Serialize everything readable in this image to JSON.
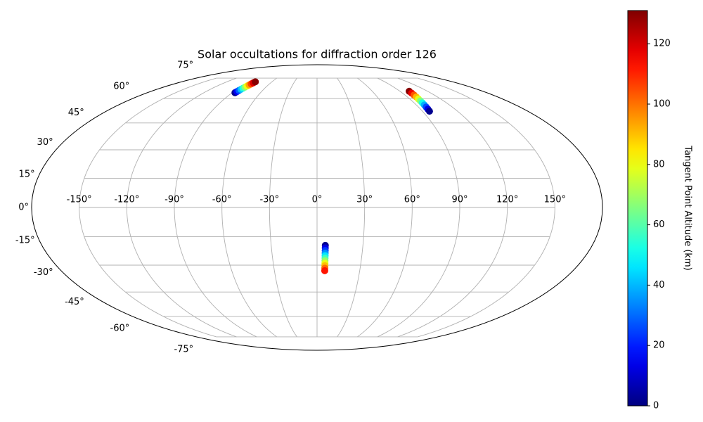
{
  "chart_data": {
    "type": "scatter",
    "projection": "mollweide",
    "title": "Solar occultations for diffraction order 126",
    "xlim": [
      -180,
      180
    ],
    "ylim": [
      -90,
      90
    ],
    "xticks": [
      {
        "value": -150,
        "label": "-150°"
      },
      {
        "value": -120,
        "label": "-120°"
      },
      {
        "value": -90,
        "label": "-90°"
      },
      {
        "value": -60,
        "label": "-60°"
      },
      {
        "value": -30,
        "label": "-30°"
      },
      {
        "value": 0,
        "label": "0°"
      },
      {
        "value": 30,
        "label": "30°"
      },
      {
        "value": 60,
        "label": "60°"
      },
      {
        "value": 90,
        "label": "90°"
      },
      {
        "value": 120,
        "label": "120°"
      },
      {
        "value": 150,
        "label": "150°"
      }
    ],
    "yticks": [
      {
        "value": -75,
        "label": "-75°"
      },
      {
        "value": -60,
        "label": "-60°"
      },
      {
        "value": -45,
        "label": "-45°"
      },
      {
        "value": -30,
        "label": "-30°"
      },
      {
        "value": -15,
        "label": "-15°"
      },
      {
        "value": 0,
        "label": "0°"
      },
      {
        "value": 15,
        "label": "15°"
      },
      {
        "value": 30,
        "label": "30°"
      },
      {
        "value": 45,
        "label": "45°"
      },
      {
        "value": 60,
        "label": "60°"
      },
      {
        "value": 75,
        "label": "75°"
      }
    ],
    "grid": true,
    "colormap": "jet",
    "colorbar": {
      "label": "Tangent Point Altitude (km)",
      "clim": [
        0,
        131
      ],
      "ticks": [
        0,
        20,
        40,
        60,
        80,
        100,
        120
      ]
    },
    "series": [
      {
        "x": [
          -87,
          -86.5,
          -86,
          -85.5,
          -85,
          -84.5,
          -84,
          -83.5,
          -83,
          -82.5,
          -82
        ],
        "y": [
          64,
          64.8,
          65.6,
          66.4,
          67.2,
          68,
          68.8,
          69.6,
          70.4,
          71.2,
          72
        ],
        "c": [
          2,
          15,
          28,
          41,
          54,
          67,
          80,
          93,
          106,
          119,
          130
        ]
      },
      {
        "x": [
          100,
          99.6,
          99.2,
          98.8,
          98.4,
          98,
          97.6,
          97.2,
          96.8,
          96.4,
          96
        ],
        "y": [
          65,
          63.7,
          62.4,
          61.1,
          59.8,
          58.5,
          57.2,
          55.9,
          54.6,
          53.3,
          52
        ],
        "c": [
          130,
          117,
          104,
          91,
          78,
          65,
          52,
          39,
          26,
          13,
          2
        ]
      },
      {
        "x": [
          5.4,
          5.4,
          5.4,
          5.4,
          5.4,
          5.4,
          5.4,
          5.4,
          5.4,
          5.4,
          5.4
        ],
        "y": [
          -19.5,
          -20.85,
          -22.2,
          -23.55,
          -24.9,
          -26.25,
          -27.6,
          -28.95,
          -30.3,
          -31.65,
          -33
        ],
        "c": [
          2,
          13,
          24,
          35,
          46,
          57,
          68,
          79,
          90,
          101,
          112
        ]
      }
    ]
  }
}
